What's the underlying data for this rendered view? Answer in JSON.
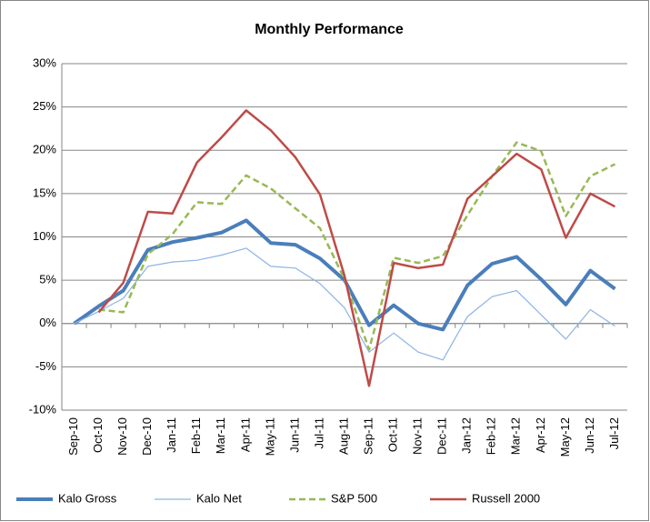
{
  "chart_data": {
    "type": "line",
    "title": "Monthly Performance",
    "categories": [
      "Sep-10",
      "Oct-10",
      "Nov-10",
      "Dec-10",
      "Jan-11",
      "Feb-11",
      "Mar-11",
      "Apr-11",
      "May-11",
      "Jun-11",
      "Jul-11",
      "Aug-11",
      "Sep-11",
      "Oct-11",
      "Nov-11",
      "Dec-11",
      "Jan-12",
      "Feb-12",
      "Mar-12",
      "Apr-12",
      "May-12",
      "Jun-12",
      "Jul-12"
    ],
    "series": [
      {
        "name": "Kalo Gross",
        "color": "#4a7ebb",
        "line_width": 4,
        "dashed": false,
        "values": [
          0,
          2.0,
          3.8,
          8.5,
          9.4,
          9.9,
          10.5,
          11.9,
          9.3,
          9.1,
          7.5,
          5.0,
          -0.2,
          2.1,
          0,
          -0.7,
          4.4,
          6.9,
          7.7,
          5.1,
          2.2,
          6.1,
          4.0
        ]
      },
      {
        "name": "Kalo Net",
        "color": "#8db3e2",
        "line_width": 1.2,
        "dashed": false,
        "values": [
          0,
          1.4,
          2.9,
          6.6,
          7.1,
          7.3,
          7.9,
          8.7,
          6.6,
          6.4,
          4.6,
          1.8,
          -3.3,
          -1.1,
          -3.3,
          -4.2,
          0.8,
          3.1,
          3.8,
          1.0,
          -1.8,
          1.6,
          -0.3
        ]
      },
      {
        "name": "S&P 500",
        "color": "#98b954",
        "line_width": 2.5,
        "dashed": true,
        "values": [
          null,
          1.6,
          1.3,
          8.0,
          10.3,
          14.0,
          13.8,
          17.1,
          15.6,
          13.3,
          11.0,
          5.1,
          -3.0,
          7.6,
          7.0,
          7.8,
          12.5,
          17.0,
          20.9,
          19.9,
          12.4,
          17.0,
          18.4
        ]
      },
      {
        "name": "Russell 2000",
        "color": "#be4b48",
        "line_width": 2.5,
        "dashed": false,
        "values": [
          null,
          1.3,
          4.7,
          12.9,
          12.7,
          18.6,
          21.5,
          24.6,
          22.3,
          19.2,
          14.9,
          5.5,
          -7.2,
          7.0,
          6.4,
          6.8,
          14.4,
          17.0,
          19.6,
          17.8,
          9.9,
          15.0,
          13.5
        ]
      }
    ],
    "ylim": [
      -10,
      30
    ],
    "yticks": [
      {
        "value": -10,
        "label": "-10%"
      },
      {
        "value": -5,
        "label": "-5%"
      },
      {
        "value": 0,
        "label": "0%"
      },
      {
        "value": 5,
        "label": "5%"
      },
      {
        "value": 10,
        "label": "10%"
      },
      {
        "value": 15,
        "label": "15%"
      },
      {
        "value": 20,
        "label": "20%"
      },
      {
        "value": 25,
        "label": "25%"
      },
      {
        "value": 30,
        "label": "30%"
      }
    ],
    "grid": true,
    "legend": "bottom"
  }
}
